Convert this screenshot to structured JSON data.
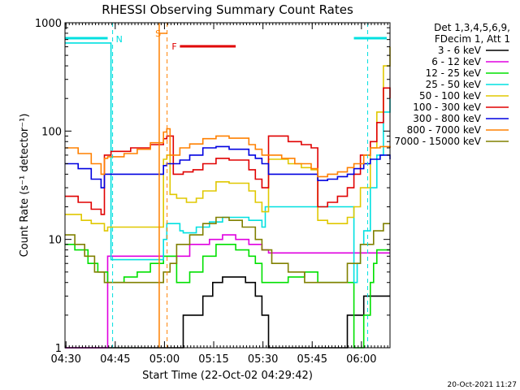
{
  "chart_data": {
    "type": "line",
    "title": "RHESSI Observing Summary Count Rates",
    "xlabel": "Start Time (22-Oct-02 04:29:42)",
    "ylabel": "Count Rate (s⁻¹ detector⁻¹)",
    "yscale": "log",
    "ylim": [
      1,
      1000
    ],
    "xlim_minutes": [
      0,
      99
    ],
    "x_ticks": [
      {
        "m": 0.3,
        "label": "04:30"
      },
      {
        "m": 15.3,
        "label": "04:45"
      },
      {
        "m": 30.3,
        "label": "05:00"
      },
      {
        "m": 45.3,
        "label": "05:15"
      },
      {
        "m": 60.3,
        "label": "05:30"
      },
      {
        "m": 75.3,
        "label": "05:45"
      },
      {
        "m": 90.3,
        "label": "06:00"
      }
    ],
    "y_ticks": [
      {
        "v": 1,
        "label": "1"
      },
      {
        "v": 10,
        "label": "10"
      },
      {
        "v": 100,
        "label": "100"
      },
      {
        "v": 1000,
        "label": "1000"
      }
    ],
    "legend_header": [
      "Det 1,3,4,5,6,9,",
      "FDecim 1, Att 1"
    ],
    "annotations": {
      "N": "N",
      "S": "S",
      "F": "F"
    },
    "footer_date": "20-Oct-2021 11:27",
    "series": [
      {
        "name": "3 - 6 keV",
        "color": "#000000",
        "x": [
          0,
          35,
          36,
          42,
          45,
          48,
          52,
          55,
          58,
          60,
          62,
          75,
          83,
          86,
          88,
          91,
          93,
          99
        ],
        "y": [
          1,
          1,
          2,
          3,
          4,
          4.5,
          4.5,
          4,
          3,
          2,
          1,
          1,
          1,
          2,
          2,
          3,
          3,
          3
        ]
      },
      {
        "name": "6 - 12 keV",
        "color": "#e000e0",
        "x": [
          0,
          12,
          13,
          15,
          20,
          28,
          30,
          34,
          38,
          44,
          48,
          52,
          56,
          60,
          62,
          70,
          75,
          90,
          94,
          99
        ],
        "y": [
          1,
          1,
          7,
          7,
          7,
          7,
          7,
          7,
          9,
          10,
          11,
          10,
          9,
          8,
          7.5,
          7.5,
          7.5,
          7.5,
          7.5,
          7.5
        ]
      },
      {
        "name": "12 - 25 keV",
        "color": "#00e000",
        "x": [
          0,
          3,
          7,
          10,
          13,
          18,
          22,
          26,
          30,
          34,
          38,
          42,
          46,
          52,
          56,
          58,
          60,
          63,
          68,
          73,
          77,
          86,
          88,
          89.5,
          91,
          93,
          94,
          95,
          99
        ],
        "y": [
          9,
          8,
          6,
          5,
          4,
          4.5,
          5,
          6,
          7,
          4,
          5,
          7,
          9,
          8,
          7,
          6,
          4,
          4,
          4.5,
          5,
          4,
          4,
          1,
          1,
          2,
          4,
          6,
          8,
          8
        ]
      },
      {
        "name": "25 - 50 keV",
        "color": "#00e0e0",
        "x": [
          0,
          7,
          8,
          13,
          14,
          18,
          22,
          26,
          30,
          31,
          35,
          36,
          40,
          44,
          48,
          52,
          56,
          60,
          61,
          62,
          68,
          75,
          77,
          80,
          85,
          88,
          89,
          90,
          91,
          93,
          95,
          97,
          99
        ],
        "y": [
          650,
          650,
          650,
          650,
          6.5,
          6.5,
          6.5,
          6.5,
          10,
          14,
          12,
          11.5,
          13,
          14.5,
          16,
          16,
          15,
          13,
          20,
          20,
          20,
          20,
          20,
          20,
          20,
          4,
          6,
          9,
          12,
          30,
          60,
          150,
          200
        ]
      },
      {
        "name": "50 - 100 keV",
        "color": "#e0c800",
        "x": [
          0,
          5,
          8,
          11,
          12,
          13,
          20,
          26,
          30,
          31,
          32,
          34,
          37,
          40,
          42,
          46,
          50,
          56,
          58,
          60,
          62,
          68,
          72,
          75,
          77,
          80,
          83,
          86,
          88,
          90,
          93,
          95,
          97,
          99
        ],
        "y": [
          17,
          15,
          14,
          14,
          12,
          13,
          13,
          13,
          55,
          60,
          26,
          24,
          22,
          24,
          28,
          34,
          33,
          28,
          22,
          18,
          55,
          50,
          46,
          44,
          15,
          14,
          14,
          16,
          20,
          30,
          70,
          150,
          400,
          600
        ]
      },
      {
        "name": "100 - 300 keV",
        "color": "#e00000",
        "x": [
          0,
          4,
          8,
          11,
          12,
          14,
          20,
          26,
          30,
          31,
          33,
          36,
          39,
          42,
          46,
          50,
          56,
          58,
          60,
          62,
          68,
          72,
          75,
          77,
          80,
          83,
          86,
          88,
          90,
          93,
          95,
          97,
          99
        ],
        "y": [
          25,
          22,
          19,
          17,
          60,
          65,
          70,
          75,
          85,
          90,
          40,
          42,
          44,
          50,
          56,
          54,
          44,
          36,
          30,
          90,
          80,
          75,
          70,
          20,
          22,
          25,
          30,
          40,
          60,
          80,
          120,
          250,
          200
        ]
      },
      {
        "name": "300 - 800 keV",
        "color": "#0000e0",
        "x": [
          0,
          4,
          8,
          11,
          12,
          13,
          18,
          22,
          26,
          30,
          31,
          32,
          35,
          38,
          42,
          46,
          50,
          56,
          58,
          60,
          62,
          66,
          70,
          75,
          77,
          80,
          83,
          86,
          88,
          91,
          93,
          96,
          99
        ],
        "y": [
          50,
          45,
          36,
          30,
          40,
          40,
          40,
          40,
          40,
          48,
          50,
          50,
          54,
          60,
          70,
          72,
          68,
          60,
          56,
          50,
          40,
          40,
          40,
          40,
          35,
          36,
          38,
          40,
          45,
          50,
          55,
          60,
          55
        ]
      },
      {
        "name": "800 - 7000 keV",
        "color": "#ff8000",
        "x": [
          0,
          4,
          8,
          11,
          12,
          13,
          18,
          22,
          26,
          30,
          31,
          32,
          35,
          38,
          42,
          46,
          50,
          56,
          58,
          60,
          62,
          66,
          70,
          75,
          77,
          80,
          83,
          86,
          88,
          91,
          93,
          96,
          99
        ],
        "y": [
          70,
          62,
          50,
          40,
          56,
          58,
          62,
          68,
          78,
          98,
          105,
          60,
          70,
          76,
          85,
          90,
          86,
          75,
          68,
          60,
          60,
          56,
          50,
          45,
          38,
          40,
          42,
          46,
          50,
          60,
          70,
          72,
          70
        ]
      },
      {
        "name": "7000 - 15000 keV",
        "color": "#808000",
        "x": [
          0,
          3,
          6,
          9,
          12,
          16,
          20,
          24,
          28,
          30,
          32,
          34,
          38,
          42,
          46,
          50,
          54,
          58,
          60,
          63,
          68,
          73,
          77,
          82,
          86,
          90,
          94,
          97,
          99
        ],
        "y": [
          11,
          9,
          7,
          5,
          4,
          4,
          4,
          4,
          4,
          5,
          6,
          9,
          11,
          14,
          16,
          15,
          13,
          10,
          8,
          6,
          5,
          4,
          4,
          4,
          6,
          9,
          12,
          14,
          14
        ]
      }
    ]
  }
}
